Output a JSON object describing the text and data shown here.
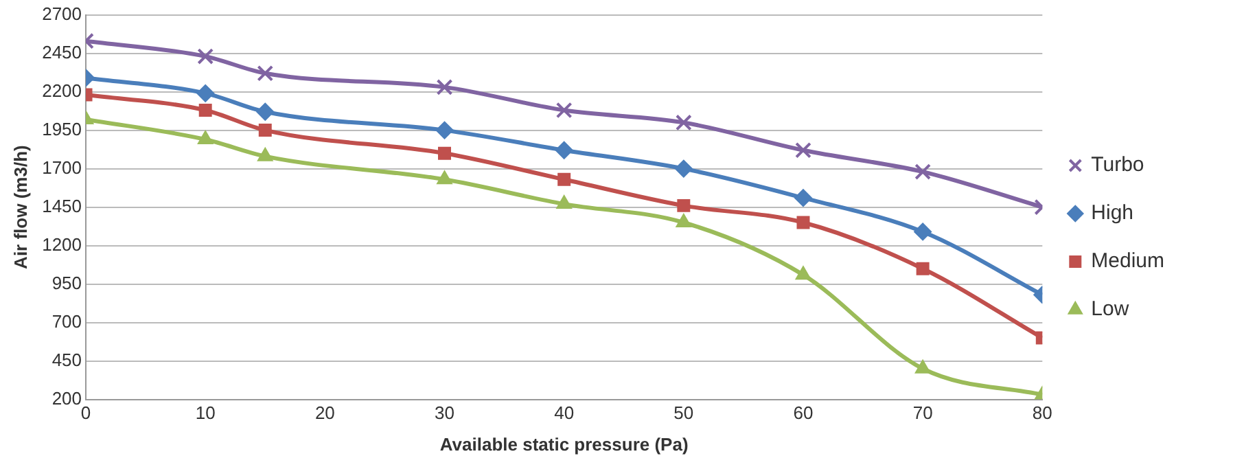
{
  "chart_data": {
    "type": "line",
    "xlabel": "Available static pressure (Pa)",
    "ylabel": "Air flow (m3/h)",
    "x": [
      0,
      10,
      15,
      30,
      40,
      50,
      60,
      70,
      80
    ],
    "xlim": [
      0,
      80
    ],
    "xticks": [
      0,
      10,
      20,
      30,
      40,
      50,
      60,
      70,
      80
    ],
    "ylim": [
      200,
      2700
    ],
    "yticks": [
      200,
      450,
      700,
      950,
      1200,
      1450,
      1700,
      1950,
      2200,
      2450,
      2700
    ],
    "grid": "y",
    "legend": "right",
    "series": [
      {
        "name": "Turbo",
        "color": "#8064a2",
        "marker": "cross",
        "values": [
          2530,
          2430,
          2320,
          2230,
          2080,
          2000,
          1820,
          1680,
          1450
        ]
      },
      {
        "name": "High",
        "color": "#4a7ebb",
        "marker": "diamond",
        "values": [
          2290,
          2190,
          2070,
          1950,
          1820,
          1700,
          1510,
          1290,
          880
        ]
      },
      {
        "name": "Medium",
        "color": "#c0504d",
        "marker": "square",
        "values": [
          2180,
          2080,
          1950,
          1800,
          1630,
          1460,
          1350,
          1050,
          600
        ]
      },
      {
        "name": "Low",
        "color": "#9bbb59",
        "marker": "triangle",
        "values": [
          2020,
          1890,
          1780,
          1630,
          1470,
          1350,
          1010,
          400,
          230
        ]
      }
    ]
  }
}
